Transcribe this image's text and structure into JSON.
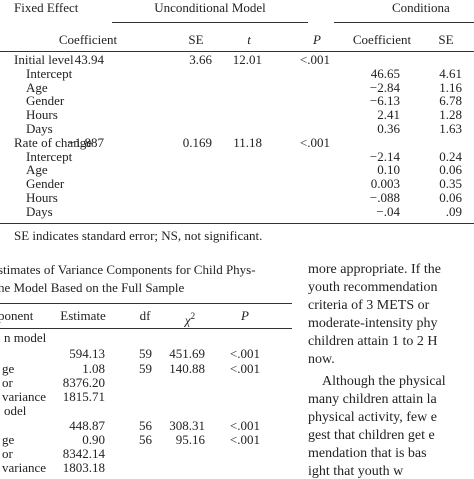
{
  "table1": {
    "header": {
      "fixed_effect": "Fixed Effect",
      "unconditional": "Unconditional Model",
      "conditional": "Conditiona"
    },
    "subheader": [
      "Coefficient",
      "SE",
      "t",
      "P",
      "Coefficient",
      "SE"
    ],
    "rows": [
      {
        "label": "Initial level",
        "unconditional": [
          "43.94",
          "3.66",
          "12.01",
          "<.001"
        ]
      },
      {
        "label": "Intercept",
        "conditional": [
          "46.65",
          "4.61"
        ]
      },
      {
        "label": "Age",
        "conditional": [
          "−2.84",
          "1.16"
        ]
      },
      {
        "label": "Gender",
        "conditional": [
          "−6.13",
          "6.78"
        ]
      },
      {
        "label": "Hours",
        "conditional": [
          "2.41",
          "1.28"
        ]
      },
      {
        "label": "Days",
        "conditional": [
          "0.36",
          "1.63"
        ]
      },
      {
        "label": "Rate of change",
        "unconditional": [
          "−1.887",
          "0.169",
          "11.18",
          "<.001"
        ]
      },
      {
        "label": "Intercept",
        "conditional": [
          "−2.14",
          "0.24"
        ]
      },
      {
        "label": "Age",
        "conditional": [
          "0.10",
          "0.06"
        ]
      },
      {
        "label": "Gender",
        "conditional": [
          "0.003",
          "0.35"
        ]
      },
      {
        "label": "Hours",
        "conditional": [
          "−.088",
          "0.06"
        ]
      },
      {
        "label": "Days",
        "conditional": [
          "−.04",
          ".09"
        ]
      }
    ],
    "footnote": "SE indicates standard error; NS, not significant."
  },
  "table2": {
    "caption": [
      "stimates of Variance Components for Child Phys-",
      "he Model Based on the Full Sample"
    ],
    "headers": [
      "ponent",
      "Estimate",
      "df",
      {
        "symbol": "χ",
        "superscript": "2"
      },
      "P"
    ],
    "rows": [
      {
        "section": "n model"
      },
      {
        "values": [
          "594.13",
          "59",
          "451.69",
          "<.001"
        ]
      },
      {
        "label": "ge",
        "values": [
          "1.08",
          "59",
          "140.88",
          "<.001"
        ]
      },
      {
        "label": "or",
        "values": [
          "8376.20"
        ]
      },
      {
        "label": "variance",
        "values": [
          "1815.71"
        ]
      },
      {
        "section": "odel"
      },
      {
        "values": [
          "448.87",
          "56",
          "308.31",
          "<.001"
        ]
      },
      {
        "label": "ge",
        "values": [
          "0.90",
          "56",
          "95.16",
          "<.001"
        ]
      },
      {
        "label": "or",
        "values": [
          "8342.14"
        ]
      },
      {
        "label": "variance",
        "values": [
          "1803.18"
        ]
      }
    ]
  },
  "body_text": {
    "lines": [
      "more appropriate. If the",
      "youth recommendation",
      "criteria of 3 METS or",
      "moderate-intensity phy",
      "children attain 1 to 2 H",
      "now.",
      "Although the physical",
      "many children attain la",
      "physical activity, few e",
      "gest that children get e",
      "mendation that is bas",
      "ight that youth w"
    ]
  }
}
